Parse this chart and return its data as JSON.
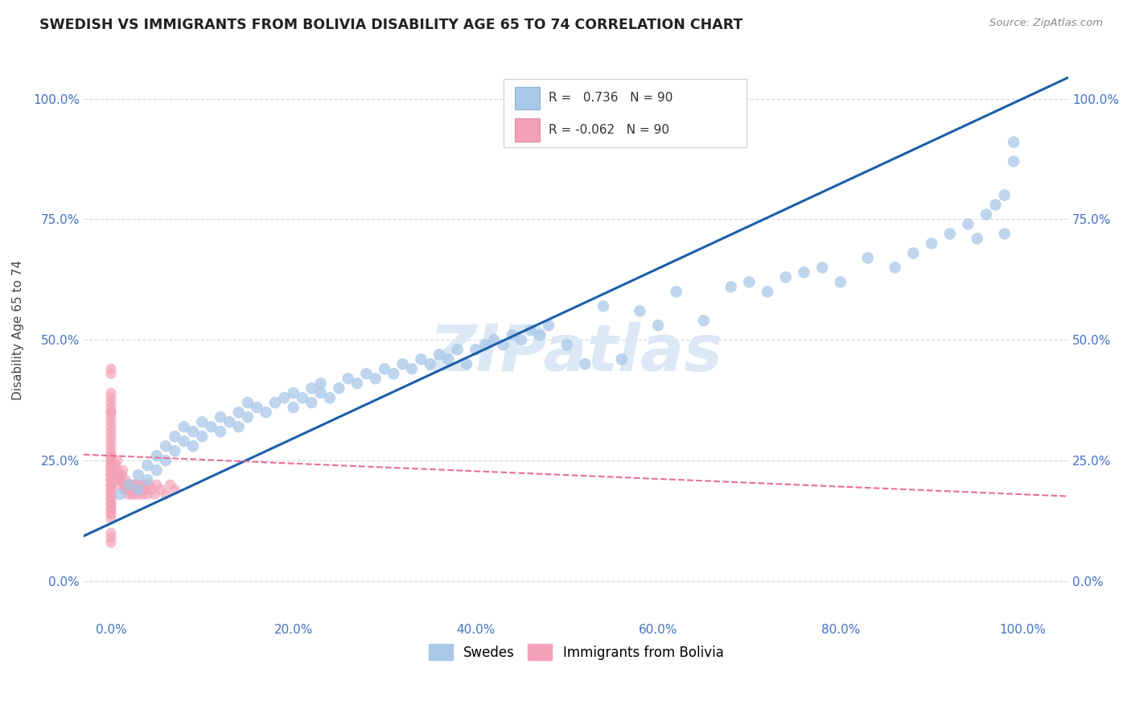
{
  "title": "SWEDISH VS IMMIGRANTS FROM BOLIVIA DISABILITY AGE 65 TO 74 CORRELATION CHART",
  "source": "Source: ZipAtlas.com",
  "ylabel": "Disability Age 65 to 74",
  "r_swedes": 0.736,
  "n_swedes": 90,
  "r_bolivia": -0.062,
  "n_bolivia": 90,
  "swedes_color": "#a8c8e8",
  "bolivia_color": "#f4a0b8",
  "swedes_line_color": "#1a5faa",
  "bolivia_line_color": "#e87090",
  "watermark": "ZIPatlas",
  "watermark_color": "#dce8f5",
  "x_tick_vals": [
    0.0,
    0.2,
    0.4,
    0.6,
    0.8,
    1.0
  ],
  "y_tick_vals": [
    0.0,
    0.25,
    0.5,
    0.75,
    1.0
  ],
  "xlim": [
    -0.03,
    1.05
  ],
  "ylim": [
    -0.08,
    1.12
  ],
  "swedes_x": [
    0.01,
    0.02,
    0.03,
    0.03,
    0.04,
    0.04,
    0.05,
    0.05,
    0.06,
    0.06,
    0.07,
    0.07,
    0.08,
    0.08,
    0.09,
    0.09,
    0.1,
    0.1,
    0.11,
    0.12,
    0.12,
    0.13,
    0.14,
    0.14,
    0.15,
    0.15,
    0.16,
    0.17,
    0.18,
    0.19,
    0.2,
    0.2,
    0.21,
    0.22,
    0.22,
    0.23,
    0.23,
    0.24,
    0.25,
    0.26,
    0.27,
    0.28,
    0.29,
    0.3,
    0.31,
    0.32,
    0.33,
    0.34,
    0.35,
    0.36,
    0.37,
    0.38,
    0.39,
    0.4,
    0.41,
    0.42,
    0.43,
    0.44,
    0.45,
    0.46,
    0.47,
    0.48,
    0.5,
    0.52,
    0.54,
    0.56,
    0.58,
    0.6,
    0.62,
    0.65,
    0.68,
    0.7,
    0.72,
    0.74,
    0.76,
    0.78,
    0.8,
    0.83,
    0.86,
    0.88,
    0.9,
    0.92,
    0.94,
    0.95,
    0.96,
    0.97,
    0.98,
    0.98,
    0.99,
    0.99
  ],
  "swedes_y": [
    0.18,
    0.2,
    0.22,
    0.19,
    0.24,
    0.21,
    0.23,
    0.26,
    0.25,
    0.28,
    0.27,
    0.3,
    0.29,
    0.32,
    0.28,
    0.31,
    0.3,
    0.33,
    0.32,
    0.31,
    0.34,
    0.33,
    0.35,
    0.32,
    0.34,
    0.37,
    0.36,
    0.35,
    0.37,
    0.38,
    0.36,
    0.39,
    0.38,
    0.37,
    0.4,
    0.39,
    0.41,
    0.38,
    0.4,
    0.42,
    0.41,
    0.43,
    0.42,
    0.44,
    0.43,
    0.45,
    0.44,
    0.46,
    0.45,
    0.47,
    0.46,
    0.48,
    0.45,
    0.48,
    0.49,
    0.5,
    0.49,
    0.51,
    0.5,
    0.52,
    0.51,
    0.53,
    0.49,
    0.45,
    0.57,
    0.46,
    0.56,
    0.53,
    0.6,
    0.54,
    0.61,
    0.62,
    0.6,
    0.63,
    0.64,
    0.65,
    0.62,
    0.67,
    0.65,
    0.68,
    0.7,
    0.72,
    0.74,
    0.71,
    0.76,
    0.78,
    0.72,
    0.8,
    0.91,
    0.87
  ],
  "bolivia_x": [
    0.0,
    0.0,
    0.0,
    0.0,
    0.0,
    0.0,
    0.0,
    0.0,
    0.0,
    0.0,
    0.0,
    0.0,
    0.0,
    0.0,
    0.0,
    0.0,
    0.0,
    0.0,
    0.0,
    0.0,
    0.0,
    0.0,
    0.0,
    0.0,
    0.0,
    0.0,
    0.0,
    0.0,
    0.0,
    0.0,
    0.0,
    0.0,
    0.0,
    0.0,
    0.0,
    0.0,
    0.0,
    0.0,
    0.0,
    0.0,
    0.0,
    0.0,
    0.0,
    0.0,
    0.0,
    0.0,
    0.0,
    0.0,
    0.0,
    0.0,
    0.005,
    0.005,
    0.007,
    0.007,
    0.008,
    0.009,
    0.009,
    0.01,
    0.012,
    0.013,
    0.014,
    0.015,
    0.016,
    0.016,
    0.018,
    0.019,
    0.02,
    0.021,
    0.022,
    0.023,
    0.024,
    0.025,
    0.026,
    0.027,
    0.028,
    0.03,
    0.032,
    0.034,
    0.035,
    0.036,
    0.038,
    0.04,
    0.042,
    0.045,
    0.048,
    0.05,
    0.055,
    0.06,
    0.065,
    0.07
  ],
  "bolivia_y": [
    0.2,
    0.21,
    0.22,
    0.23,
    0.24,
    0.25,
    0.26,
    0.27,
    0.28,
    0.29,
    0.3,
    0.31,
    0.32,
    0.33,
    0.34,
    0.35,
    0.21,
    0.22,
    0.23,
    0.24,
    0.25,
    0.26,
    0.19,
    0.2,
    0.21,
    0.22,
    0.23,
    0.18,
    0.19,
    0.2,
    0.17,
    0.18,
    0.16,
    0.17,
    0.15,
    0.16,
    0.14,
    0.15,
    0.13,
    0.14,
    0.43,
    0.44,
    0.39,
    0.38,
    0.37,
    0.36,
    0.35,
    0.1,
    0.09,
    0.08,
    0.22,
    0.24,
    0.23,
    0.25,
    0.21,
    0.22,
    0.2,
    0.21,
    0.22,
    0.23,
    0.19,
    0.2,
    0.21,
    0.19,
    0.2,
    0.18,
    0.19,
    0.2,
    0.19,
    0.18,
    0.2,
    0.19,
    0.18,
    0.2,
    0.19,
    0.18,
    0.2,
    0.19,
    0.18,
    0.2,
    0.19,
    0.18,
    0.2,
    0.19,
    0.18,
    0.2,
    0.19,
    0.18,
    0.2,
    0.19
  ]
}
